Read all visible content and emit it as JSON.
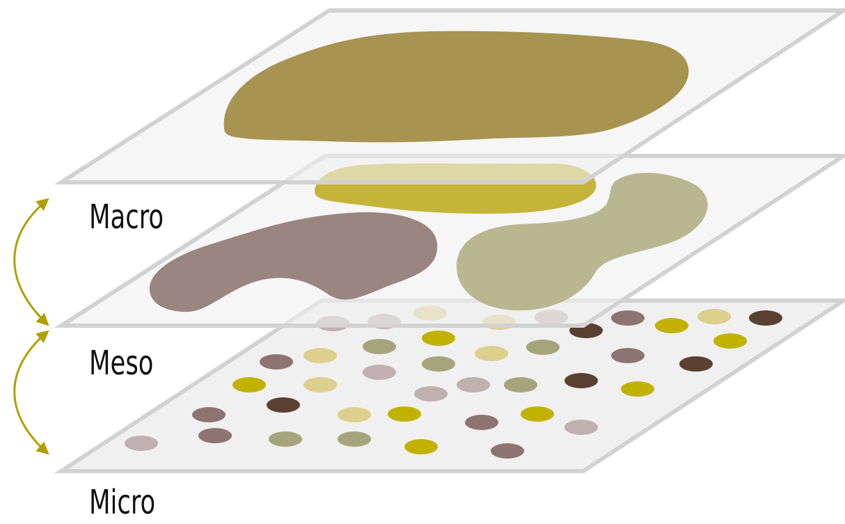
{
  "labels": {
    "macro": "Macro",
    "meso": "Meso",
    "micro": "Micro"
  },
  "colors": {
    "plane_fill": "#f0f0f0",
    "plane_stroke": "#d2d2d2",
    "macro_blob": "#a69450",
    "yellow_blob": "#c4b43a",
    "brown_blob": "#9a8580",
    "sage_blob": "#b8b790",
    "arrow": "#b0a000",
    "dot_palette": [
      "#5a4030",
      "#8e7470",
      "#c0b0b0",
      "#c2b200",
      "#a6a47a",
      "#ddd08c"
    ]
  }
}
